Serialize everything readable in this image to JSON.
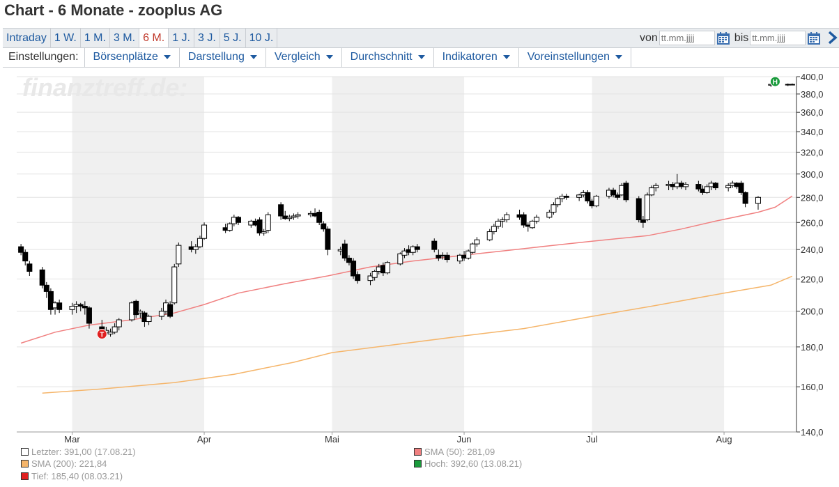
{
  "title": "Chart - 6 Monate - zooplus AG",
  "ranges": [
    {
      "label": "Intraday",
      "active": false
    },
    {
      "label": "1 W.",
      "active": false
    },
    {
      "label": "1 M.",
      "active": false
    },
    {
      "label": "3 M.",
      "active": false
    },
    {
      "label": "6 M.",
      "active": true
    },
    {
      "label": "1 J.",
      "active": false
    },
    {
      "label": "3 J.",
      "active": false
    },
    {
      "label": "5 J.",
      "active": false
    },
    {
      "label": "10 J.",
      "active": false
    }
  ],
  "date_range": {
    "from_label": "von",
    "to_label": "bis",
    "from_placeholder": "tt.mm.jjjj",
    "to_placeholder": "tt.mm.jjjj"
  },
  "settings": {
    "label": "Einstellungen:",
    "menus": [
      "Börsenplätze",
      "Darstellung",
      "Vergleich",
      "Durchschnitt",
      "Indikatoren",
      "Voreinstellungen"
    ]
  },
  "watermark": "finanztreff.de:",
  "colors": {
    "candle_up": "#ffffff",
    "candle_down": "#000000",
    "sma50": "#f08080",
    "sma200": "#f5b56a",
    "shade": "#f0f0f0",
    "high_marker": "#1a9b3c",
    "low_marker": "#e02020"
  },
  "chart_data": {
    "type": "candlestick",
    "y_scale": "log",
    "ylim": [
      140,
      400
    ],
    "y_ticks": [
      "400,0",
      "380,0",
      "360,0",
      "340,0",
      "320,0",
      "300,0",
      "280,0",
      "260,0",
      "240,0",
      "220,0",
      "200,0",
      "180,0",
      "160,0",
      "140,0"
    ],
    "x_labels": [
      "Mar",
      "Apr",
      "Mai",
      "Jun",
      "Jul",
      "Aug"
    ],
    "x_label_dates": [
      "2021-03-01",
      "2021-04-01",
      "2021-05-01",
      "2021-06-01",
      "2021-07-01",
      "2021-08-01"
    ],
    "grid": true,
    "candles": [
      {
        "date": "2021-02-17",
        "o": 242,
        "h": 244,
        "l": 236,
        "c": 238
      },
      {
        "date": "2021-02-18",
        "o": 238,
        "h": 240,
        "l": 229,
        "c": 232
      },
      {
        "date": "2021-02-19",
        "o": 230,
        "h": 232,
        "l": 222,
        "c": 225
      },
      {
        "date": "2021-02-22",
        "o": 226,
        "h": 228,
        "l": 214,
        "c": 216
      },
      {
        "date": "2021-02-23",
        "o": 216,
        "h": 218,
        "l": 208,
        "c": 212
      },
      {
        "date": "2021-02-24",
        "o": 212,
        "h": 214,
        "l": 198,
        "c": 201
      },
      {
        "date": "2021-02-25",
        "o": 202,
        "h": 206,
        "l": 198,
        "c": 205
      },
      {
        "date": "2021-02-26",
        "o": 205,
        "h": 207,
        "l": 199,
        "c": 201
      },
      {
        "date": "2021-03-01",
        "o": 201,
        "h": 205,
        "l": 198,
        "c": 203
      },
      {
        "date": "2021-03-02",
        "o": 203,
        "h": 206,
        "l": 199,
        "c": 204
      },
      {
        "date": "2021-03-03",
        "o": 204,
        "h": 205,
        "l": 200,
        "c": 203
      },
      {
        "date": "2021-03-04",
        "o": 203,
        "h": 206,
        "l": 198,
        "c": 202
      },
      {
        "date": "2021-03-05",
        "o": 202,
        "h": 203,
        "l": 190,
        "c": 193
      },
      {
        "date": "2021-03-08",
        "o": 191,
        "h": 195,
        "l": 185.4,
        "c": 188
      },
      {
        "date": "2021-03-09",
        "o": 188,
        "h": 191,
        "l": 187,
        "c": 189
      },
      {
        "date": "2021-03-10",
        "o": 187,
        "h": 190,
        "l": 185.5,
        "c": 188
      },
      {
        "date": "2021-03-11",
        "o": 188,
        "h": 193,
        "l": 187,
        "c": 191
      },
      {
        "date": "2021-03-12",
        "o": 191,
        "h": 196,
        "l": 189,
        "c": 195
      },
      {
        "date": "2021-03-15",
        "o": 195,
        "h": 206,
        "l": 194,
        "c": 205
      },
      {
        "date": "2021-03-16",
        "o": 206,
        "h": 207,
        "l": 196,
        "c": 198
      },
      {
        "date": "2021-03-17",
        "o": 199,
        "h": 201,
        "l": 196,
        "c": 200
      },
      {
        "date": "2021-03-18",
        "o": 199,
        "h": 200,
        "l": 191,
        "c": 194
      },
      {
        "date": "2021-03-19",
        "o": 194,
        "h": 198,
        "l": 192,
        "c": 197
      },
      {
        "date": "2021-03-22",
        "o": 197,
        "h": 202,
        "l": 195,
        "c": 200
      },
      {
        "date": "2021-03-23",
        "o": 200,
        "h": 207,
        "l": 198,
        "c": 205
      },
      {
        "date": "2021-03-24",
        "o": 204,
        "h": 206,
        "l": 196,
        "c": 197
      },
      {
        "date": "2021-03-25",
        "o": 205,
        "h": 230,
        "l": 204,
        "c": 228
      },
      {
        "date": "2021-03-26",
        "o": 230,
        "h": 245,
        "l": 228,
        "c": 243
      },
      {
        "date": "2021-03-29",
        "o": 242,
        "h": 246,
        "l": 238,
        "c": 240
      },
      {
        "date": "2021-03-30",
        "o": 240,
        "h": 244,
        "l": 237,
        "c": 242
      },
      {
        "date": "2021-03-31",
        "o": 242,
        "h": 250,
        "l": 241,
        "c": 248
      },
      {
        "date": "2021-04-01",
        "o": 248,
        "h": 260,
        "l": 247,
        "c": 258
      },
      {
        "date": "2021-04-06",
        "o": 256,
        "h": 259,
        "l": 252,
        "c": 254
      },
      {
        "date": "2021-04-07",
        "o": 254,
        "h": 260,
        "l": 253,
        "c": 259
      },
      {
        "date": "2021-04-08",
        "o": 259,
        "h": 266,
        "l": 257,
        "c": 264
      },
      {
        "date": "2021-04-09",
        "o": 264,
        "h": 265,
        "l": 258,
        "c": 260
      },
      {
        "date": "2021-04-12",
        "o": 258,
        "h": 262,
        "l": 256,
        "c": 261
      },
      {
        "date": "2021-04-13",
        "o": 261,
        "h": 263,
        "l": 257,
        "c": 258
      },
      {
        "date": "2021-04-14",
        "o": 262,
        "h": 264,
        "l": 250,
        "c": 252
      },
      {
        "date": "2021-04-15",
        "o": 252,
        "h": 255,
        "l": 250,
        "c": 253
      },
      {
        "date": "2021-04-16",
        "o": 254,
        "h": 268,
        "l": 252,
        "c": 266
      },
      {
        "date": "2021-04-19",
        "o": 274,
        "h": 276,
        "l": 262,
        "c": 265
      },
      {
        "date": "2021-04-20",
        "o": 265,
        "h": 269,
        "l": 262,
        "c": 263
      },
      {
        "date": "2021-04-21",
        "o": 263,
        "h": 266,
        "l": 261,
        "c": 264
      },
      {
        "date": "2021-04-22",
        "o": 264,
        "h": 267,
        "l": 262,
        "c": 265
      },
      {
        "date": "2021-04-23",
        "o": 265,
        "h": 268,
        "l": 263,
        "c": 266
      },
      {
        "date": "2021-04-26",
        "o": 266,
        "h": 269,
        "l": 264,
        "c": 267
      },
      {
        "date": "2021-04-27",
        "o": 267,
        "h": 271,
        "l": 264,
        "c": 265
      },
      {
        "date": "2021-04-28",
        "o": 268,
        "h": 270,
        "l": 258,
        "c": 260
      },
      {
        "date": "2021-04-29",
        "o": 259,
        "h": 261,
        "l": 253,
        "c": 255
      },
      {
        "date": "2021-04-30",
        "o": 255,
        "h": 257,
        "l": 236,
        "c": 240
      },
      {
        "date": "2021-05-03",
        "o": 239,
        "h": 242,
        "l": 236,
        "c": 240
      },
      {
        "date": "2021-05-04",
        "o": 244,
        "h": 247,
        "l": 232,
        "c": 234
      },
      {
        "date": "2021-05-05",
        "o": 234,
        "h": 236,
        "l": 229,
        "c": 231
      },
      {
        "date": "2021-05-06",
        "o": 232,
        "h": 234,
        "l": 220,
        "c": 222
      },
      {
        "date": "2021-05-07",
        "o": 223,
        "h": 225,
        "l": 217,
        "c": 219
      },
      {
        "date": "2021-05-10",
        "o": 219,
        "h": 224,
        "l": 216,
        "c": 222
      },
      {
        "date": "2021-05-11",
        "o": 221,
        "h": 226,
        "l": 219,
        "c": 225
      },
      {
        "date": "2021-05-12",
        "o": 225,
        "h": 230,
        "l": 223,
        "c": 228
      },
      {
        "date": "2021-05-13",
        "o": 229,
        "h": 231,
        "l": 222,
        "c": 224
      },
      {
        "date": "2021-05-14",
        "o": 224,
        "h": 232,
        "l": 223,
        "c": 231
      },
      {
        "date": "2021-05-17",
        "o": 230,
        "h": 238,
        "l": 229,
        "c": 237
      },
      {
        "date": "2021-05-18",
        "o": 236,
        "h": 241,
        "l": 234,
        "c": 239
      },
      {
        "date": "2021-05-19",
        "o": 240,
        "h": 243,
        "l": 236,
        "c": 238
      },
      {
        "date": "2021-05-20",
        "o": 238,
        "h": 243,
        "l": 236,
        "c": 242
      },
      {
        "date": "2021-05-21",
        "o": 242,
        "h": 244,
        "l": 238,
        "c": 240
      },
      {
        "date": "2021-05-25",
        "o": 246,
        "h": 248,
        "l": 238,
        "c": 240
      },
      {
        "date": "2021-05-26",
        "o": 236,
        "h": 240,
        "l": 232,
        "c": 234
      },
      {
        "date": "2021-05-27",
        "o": 236,
        "h": 238,
        "l": 233,
        "c": 236
      },
      {
        "date": "2021-05-28",
        "o": 236,
        "h": 238,
        "l": 231,
        "c": 233
      },
      {
        "date": "2021-05-31",
        "o": 232,
        "h": 237,
        "l": 230,
        "c": 236
      },
      {
        "date": "2021-06-01",
        "o": 236,
        "h": 239,
        "l": 232,
        "c": 234
      },
      {
        "date": "2021-06-02",
        "o": 234,
        "h": 240,
        "l": 233,
        "c": 239
      },
      {
        "date": "2021-06-03",
        "o": 238,
        "h": 245,
        "l": 237,
        "c": 244
      },
      {
        "date": "2021-06-04",
        "o": 244,
        "h": 249,
        "l": 242,
        "c": 247
      },
      {
        "date": "2021-06-07",
        "o": 247,
        "h": 255,
        "l": 246,
        "c": 253
      },
      {
        "date": "2021-06-08",
        "o": 253,
        "h": 259,
        "l": 251,
        "c": 257
      },
      {
        "date": "2021-06-09",
        "o": 257,
        "h": 263,
        "l": 255,
        "c": 261
      },
      {
        "date": "2021-06-10",
        "o": 261,
        "h": 264,
        "l": 256,
        "c": 262
      },
      {
        "date": "2021-06-11",
        "o": 262,
        "h": 268,
        "l": 260,
        "c": 266
      },
      {
        "date": "2021-06-14",
        "o": 266,
        "h": 270,
        "l": 262,
        "c": 264
      },
      {
        "date": "2021-06-15",
        "o": 266,
        "h": 268,
        "l": 256,
        "c": 258
      },
      {
        "date": "2021-06-16",
        "o": 258,
        "h": 260,
        "l": 253,
        "c": 257
      },
      {
        "date": "2021-06-17",
        "o": 256,
        "h": 262,
        "l": 255,
        "c": 261
      },
      {
        "date": "2021-06-18",
        "o": 261,
        "h": 266,
        "l": 259,
        "c": 264
      },
      {
        "date": "2021-06-21",
        "o": 264,
        "h": 270,
        "l": 263,
        "c": 268
      },
      {
        "date": "2021-06-22",
        "o": 268,
        "h": 276,
        "l": 266,
        "c": 274
      },
      {
        "date": "2021-06-23",
        "o": 274,
        "h": 280,
        "l": 272,
        "c": 279
      },
      {
        "date": "2021-06-24",
        "o": 279,
        "h": 283,
        "l": 276,
        "c": 281
      },
      {
        "date": "2021-06-25",
        "o": 281,
        "h": 283,
        "l": 278,
        "c": 280
      },
      {
        "date": "2021-06-28",
        "o": 280,
        "h": 283,
        "l": 277,
        "c": 282
      },
      {
        "date": "2021-06-29",
        "o": 282,
        "h": 286,
        "l": 280,
        "c": 284
      },
      {
        "date": "2021-06-30",
        "o": 284,
        "h": 286,
        "l": 275,
        "c": 277
      },
      {
        "date": "2021-07-01",
        "o": 277,
        "h": 279,
        "l": 271,
        "c": 273
      },
      {
        "date": "2021-07-02",
        "o": 273,
        "h": 282,
        "l": 272,
        "c": 281
      },
      {
        "date": "2021-07-05",
        "o": 281,
        "h": 288,
        "l": 279,
        "c": 286
      },
      {
        "date": "2021-07-06",
        "o": 286,
        "h": 288,
        "l": 280,
        "c": 282
      },
      {
        "date": "2021-07-07",
        "o": 282,
        "h": 284,
        "l": 278,
        "c": 280
      },
      {
        "date": "2021-07-08",
        "o": 282,
        "h": 292,
        "l": 281,
        "c": 290
      },
      {
        "date": "2021-07-09",
        "o": 292,
        "h": 294,
        "l": 276,
        "c": 278
      },
      {
        "date": "2021-07-12",
        "o": 279,
        "h": 281,
        "l": 260,
        "c": 262
      },
      {
        "date": "2021-07-13",
        "o": 262,
        "h": 265,
        "l": 256,
        "c": 260
      },
      {
        "date": "2021-07-14",
        "o": 262,
        "h": 284,
        "l": 261,
        "c": 282
      },
      {
        "date": "2021-07-15",
        "o": 282,
        "h": 290,
        "l": 281,
        "c": 288
      },
      {
        "date": "2021-07-16",
        "o": 288,
        "h": 292,
        "l": 285,
        "c": 290
      },
      {
        "date": "2021-07-19",
        "o": 290,
        "h": 294,
        "l": 286,
        "c": 291
      },
      {
        "date": "2021-07-20",
        "o": 291,
        "h": 293,
        "l": 286,
        "c": 289
      },
      {
        "date": "2021-07-21",
        "o": 289,
        "h": 300,
        "l": 287,
        "c": 292
      },
      {
        "date": "2021-07-22",
        "o": 292,
        "h": 294,
        "l": 287,
        "c": 289
      },
      {
        "date": "2021-07-23",
        "o": 289,
        "h": 293,
        "l": 286,
        "c": 291
      },
      {
        "date": "2021-07-26",
        "o": 291,
        "h": 294,
        "l": 285,
        "c": 287
      },
      {
        "date": "2021-07-27",
        "o": 287,
        "h": 290,
        "l": 282,
        "c": 284
      },
      {
        "date": "2021-07-28",
        "o": 284,
        "h": 291,
        "l": 283,
        "c": 289
      },
      {
        "date": "2021-07-29",
        "o": 289,
        "h": 294,
        "l": 286,
        "c": 292
      },
      {
        "date": "2021-07-30",
        "o": 292,
        "h": 293,
        "l": 286,
        "c": 288
      },
      {
        "date": "2021-08-02",
        "o": 288,
        "h": 292,
        "l": 285,
        "c": 290
      },
      {
        "date": "2021-08-03",
        "o": 290,
        "h": 294,
        "l": 288,
        "c": 292
      },
      {
        "date": "2021-08-04",
        "o": 292,
        "h": 293,
        "l": 287,
        "c": 289
      },
      {
        "date": "2021-08-05",
        "o": 292,
        "h": 294,
        "l": 282,
        "c": 284
      },
      {
        "date": "2021-08-06",
        "o": 284,
        "h": 285,
        "l": 272,
        "c": 275
      },
      {
        "date": "2021-08-09",
        "o": 275,
        "h": 281,
        "l": 270,
        "c": 280
      },
      {
        "date": "2021-08-12",
        "o": 390,
        "h": 391.5,
        "l": 388,
        "c": 391
      },
      {
        "date": "2021-08-13",
        "o": 391,
        "h": 392.6,
        "l": 389,
        "c": 390.5
      },
      {
        "date": "2021-08-16",
        "o": 390.5,
        "h": 392,
        "l": 389,
        "c": 391
      },
      {
        "date": "2021-08-17",
        "o": 391,
        "h": 392,
        "l": 390,
        "c": 391
      }
    ],
    "sma50": [
      {
        "date": "2021-02-17",
        "v": 182
      },
      {
        "date": "2021-02-25",
        "v": 188
      },
      {
        "date": "2021-03-05",
        "v": 192
      },
      {
        "date": "2021-03-15",
        "v": 195
      },
      {
        "date": "2021-03-25",
        "v": 199
      },
      {
        "date": "2021-04-01",
        "v": 204
      },
      {
        "date": "2021-04-09",
        "v": 211
      },
      {
        "date": "2021-04-20",
        "v": 217
      },
      {
        "date": "2021-04-30",
        "v": 222
      },
      {
        "date": "2021-05-10",
        "v": 228
      },
      {
        "date": "2021-05-20",
        "v": 232
      },
      {
        "date": "2021-06-01",
        "v": 236
      },
      {
        "date": "2021-06-10",
        "v": 239
      },
      {
        "date": "2021-06-22",
        "v": 243
      },
      {
        "date": "2021-07-01",
        "v": 246
      },
      {
        "date": "2021-07-14",
        "v": 250
      },
      {
        "date": "2021-07-22",
        "v": 255
      },
      {
        "date": "2021-07-30",
        "v": 261
      },
      {
        "date": "2021-08-09",
        "v": 268
      },
      {
        "date": "2021-08-13",
        "v": 272
      },
      {
        "date": "2021-08-17",
        "v": 281.09
      }
    ],
    "sma200": [
      {
        "date": "2021-02-22",
        "v": 157
      },
      {
        "date": "2021-03-08",
        "v": 159
      },
      {
        "date": "2021-03-25",
        "v": 162
      },
      {
        "date": "2021-04-08",
        "v": 166
      },
      {
        "date": "2021-04-22",
        "v": 172
      },
      {
        "date": "2021-05-01",
        "v": 177
      },
      {
        "date": "2021-05-15",
        "v": 181
      },
      {
        "date": "2021-06-01",
        "v": 186
      },
      {
        "date": "2021-06-15",
        "v": 190
      },
      {
        "date": "2021-07-01",
        "v": 197
      },
      {
        "date": "2021-07-15",
        "v": 203
      },
      {
        "date": "2021-08-01",
        "v": 211
      },
      {
        "date": "2021-08-12",
        "v": 216
      },
      {
        "date": "2021-08-17",
        "v": 221.84
      }
    ],
    "markers": [
      {
        "type": "high",
        "label": "H",
        "date": "2021-08-13",
        "value": 392.6
      },
      {
        "type": "low",
        "label": "T",
        "date": "2021-03-08",
        "value": 185.4
      }
    ]
  },
  "legend": [
    {
      "text": "Letzter: 391,00 (17.08.21)",
      "color": "#ffffff"
    },
    {
      "text": "SMA (50): 281,09",
      "color": "#f08080"
    },
    {
      "text": "SMA (200): 221,84",
      "color": "#f5b56a"
    },
    {
      "text": "Hoch: 392,60 (13.08.21)",
      "color": "#1a9b3c"
    },
    {
      "text": "Tief: 185,40 (08.03.21)",
      "color": "#e02020"
    }
  ]
}
